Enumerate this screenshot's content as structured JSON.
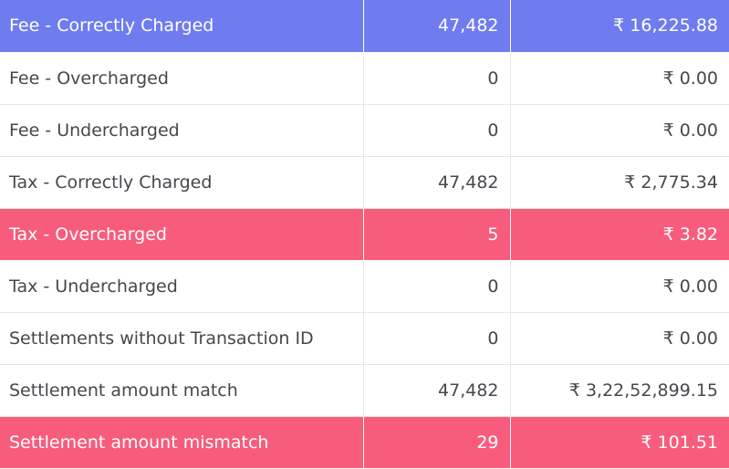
{
  "rows": [
    {
      "label": "Fee - Correctly Charged",
      "count": "47,482",
      "amount": "₹ 16,225.88",
      "highlight": "blue"
    },
    {
      "label": "Fee - Overcharged",
      "count": "0",
      "amount": "₹ 0.00",
      "highlight": ""
    },
    {
      "label": "Fee - Undercharged",
      "count": "0",
      "amount": "₹ 0.00",
      "highlight": ""
    },
    {
      "label": "Tax - Correctly Charged",
      "count": "47,482",
      "amount": "₹ 2,775.34",
      "highlight": ""
    },
    {
      "label": "Tax - Overcharged",
      "count": "5",
      "amount": "₹ 3.82",
      "highlight": "red"
    },
    {
      "label": "Tax - Undercharged",
      "count": "0",
      "amount": "₹ 0.00",
      "highlight": ""
    },
    {
      "label": "Settlements without Transaction ID",
      "count": "0",
      "amount": "₹ 0.00",
      "highlight": ""
    },
    {
      "label": "Settlement amount match",
      "count": "47,482",
      "amount": "₹ 3,22,52,899.15",
      "highlight": ""
    },
    {
      "label": "Settlement amount mismatch",
      "count": "29",
      "amount": "₹ 101.51",
      "highlight": "red"
    }
  ],
  "colors": {
    "highlight_blue": "#6f7cf0",
    "highlight_red": "#f85c7c",
    "text": "#44484d"
  }
}
